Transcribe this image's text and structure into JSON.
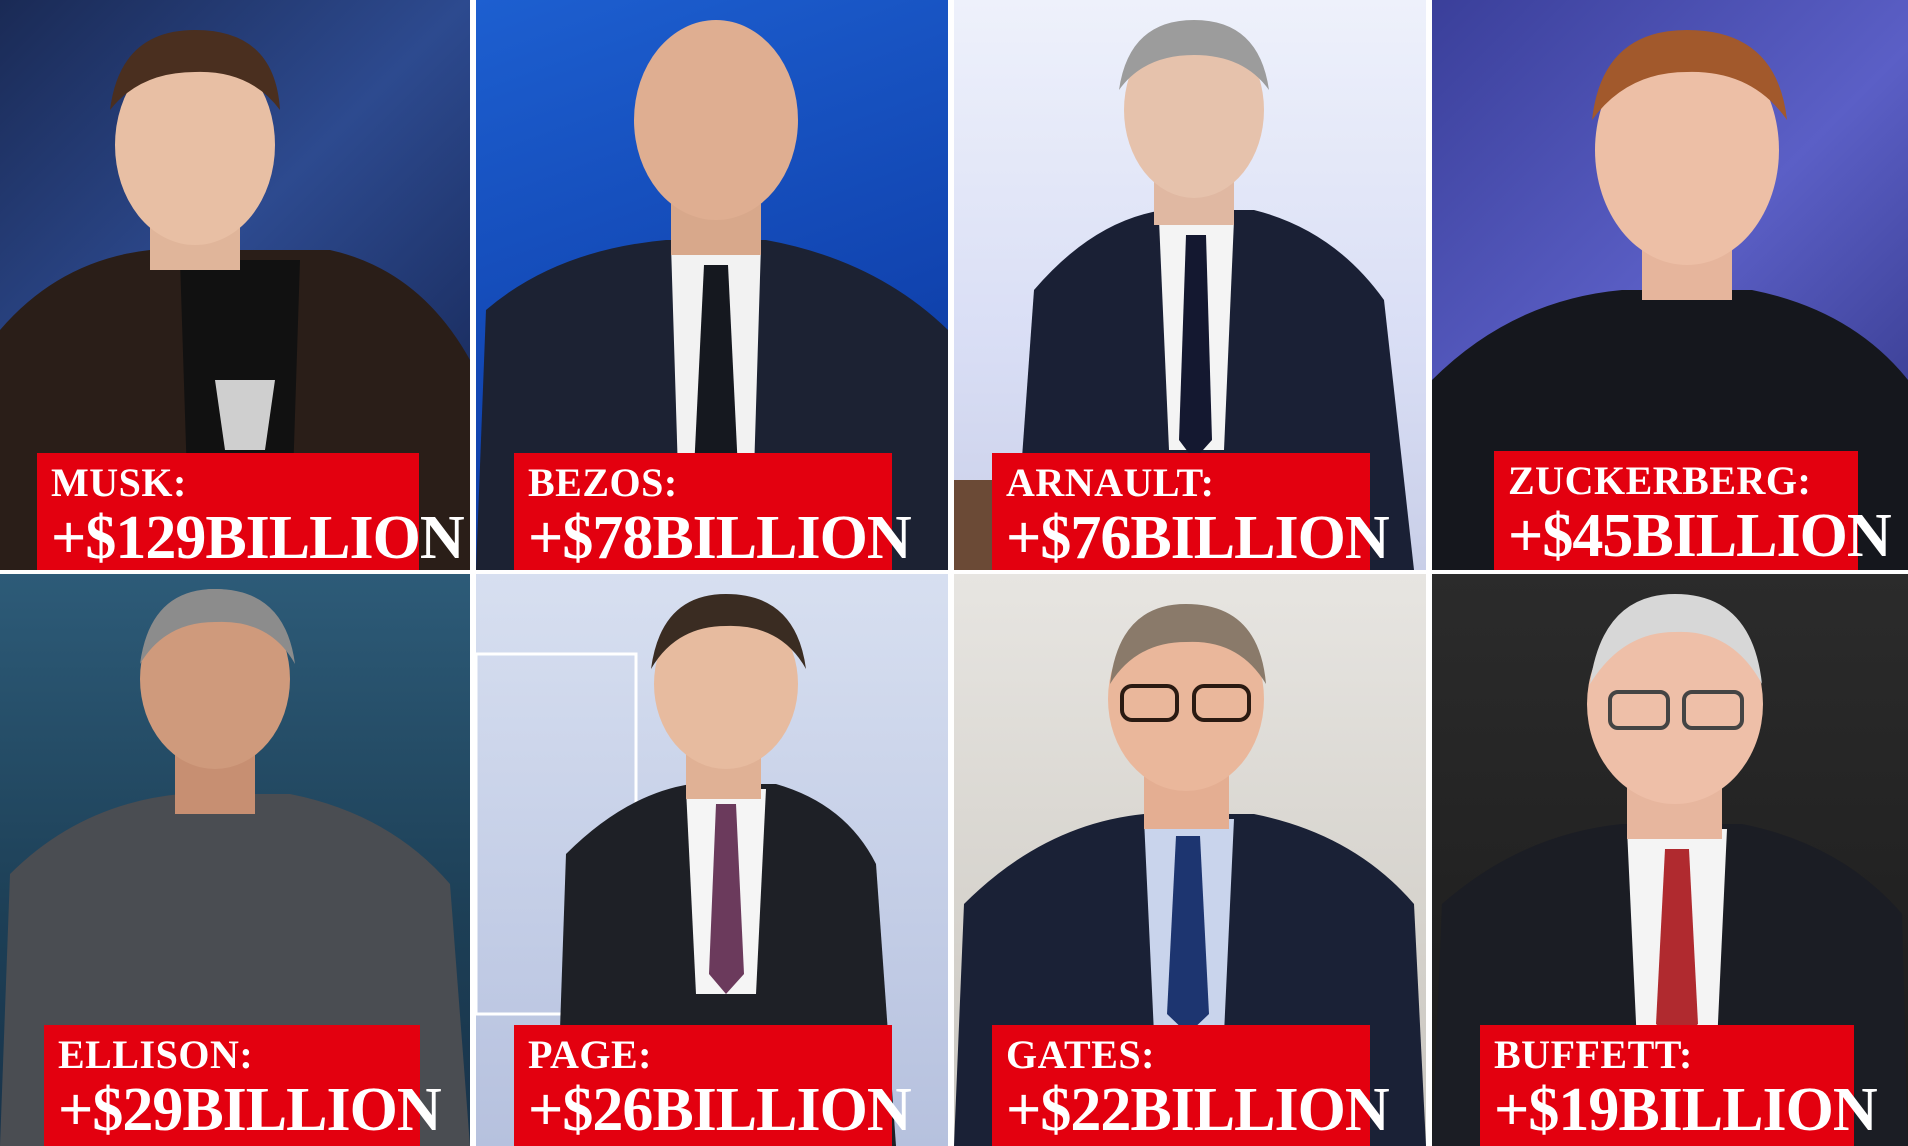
{
  "tiles": [
    {
      "name": "MUSK:",
      "amount": "+$129BILLION"
    },
    {
      "name": "BEZOS:",
      "amount": "+$78BILLION"
    },
    {
      "name": "ARNAULT:",
      "amount": "+$76BILLION"
    },
    {
      "name": "ZUCKERBERG:",
      "amount": "+$45BILLION"
    },
    {
      "name": "ELLISON:",
      "amount": "+$29BILLION"
    },
    {
      "name": "PAGE:",
      "amount": "+$26BILLION"
    },
    {
      "name": "GATES:",
      "amount": "+$22BILLION"
    },
    {
      "name": "BUFFETT:",
      "amount": "+$19BILLION"
    }
  ],
  "colors": {
    "label_background": "#e3000f",
    "label_text": "#ffffff"
  }
}
